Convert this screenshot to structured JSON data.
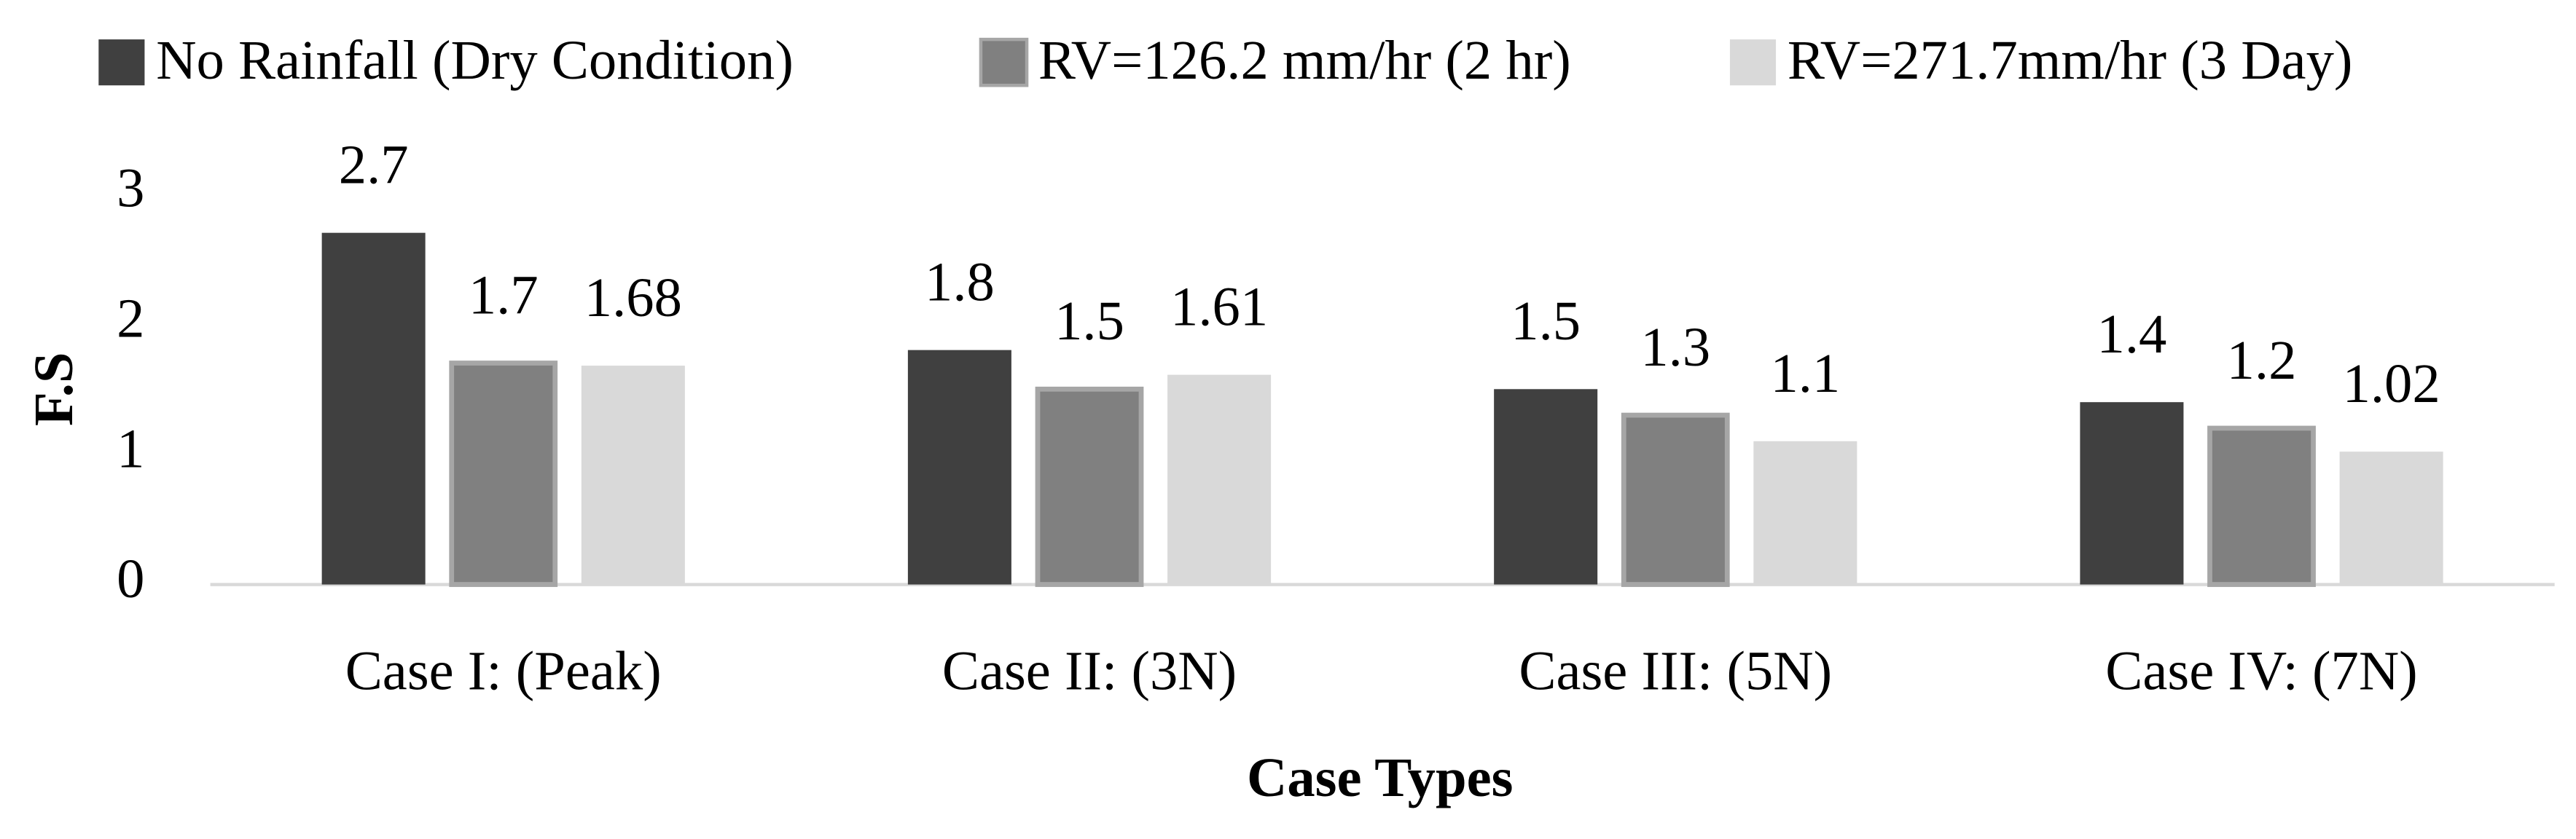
{
  "chart_data": {
    "type": "bar",
    "categories": [
      "Case I: (Peak)",
      "Case II: (3N)",
      "Case III: (5N)",
      "Case IV: (7N)"
    ],
    "series": [
      {
        "name": "No Rainfall (Dry Condition)",
        "color": "#404040",
        "values": [
          2.7,
          1.8,
          1.5,
          1.4
        ]
      },
      {
        "name": "RV=126.2 mm/hr (2 hr)",
        "color": "#808080",
        "values": [
          1.7,
          1.5,
          1.3,
          1.2
        ]
      },
      {
        "name": "RV=271.7mm/hr (3 Day)",
        "color": "#d9d9d9",
        "values": [
          1.68,
          1.61,
          1.1,
          1.02
        ]
      }
    ],
    "x_label": "Case Types",
    "y_label": "F.S",
    "ylim": [
      0,
      3
    ],
    "yticks": [
      0,
      1,
      2,
      3
    ],
    "grid": false,
    "legend": "top"
  }
}
